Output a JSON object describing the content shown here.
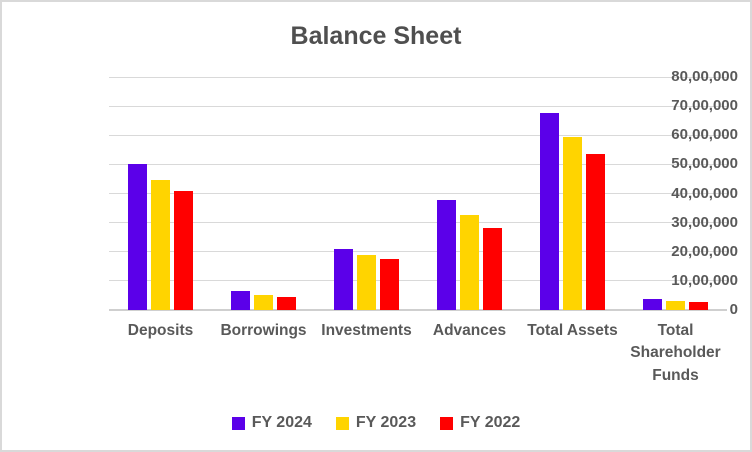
{
  "chart_data": {
    "type": "bar",
    "title": "Balance Sheet",
    "categories": [
      "Deposits",
      "Borrowings",
      "Investments",
      "Advances",
      "Total Assets",
      "Total Shareholder Funds"
    ],
    "series": [
      {
        "name": "FY 2024",
        "color": "#5b00e9",
        "values": [
          5000000,
          650000,
          2100000,
          3775000,
          6750000,
          375000
        ]
      },
      {
        "name": "FY 2023",
        "color": "#ffd400",
        "values": [
          4450000,
          500000,
          1900000,
          3250000,
          5950000,
          325000
        ]
      },
      {
        "name": "FY 2022",
        "color": "#ff0000",
        "values": [
          4100000,
          450000,
          1750000,
          2800000,
          5350000,
          275000
        ]
      }
    ],
    "ylim": [
      0,
      8000000
    ],
    "y_tick_step": 1000000,
    "y_tick_labels": [
      "0",
      "10,00,000",
      "20,00,000",
      "30,00,000",
      "40,00,000",
      "50,00,000",
      "60,00,000",
      "70,00,000",
      "80,00,000"
    ],
    "xlabel": "",
    "ylabel": "",
    "grid": true,
    "legend_position": "bottom",
    "colors": {
      "title_text": "#4f4f4f",
      "axis_text": "#595959",
      "gridline": "#d9d9d9",
      "frame_border": "#d9d9d9"
    }
  }
}
